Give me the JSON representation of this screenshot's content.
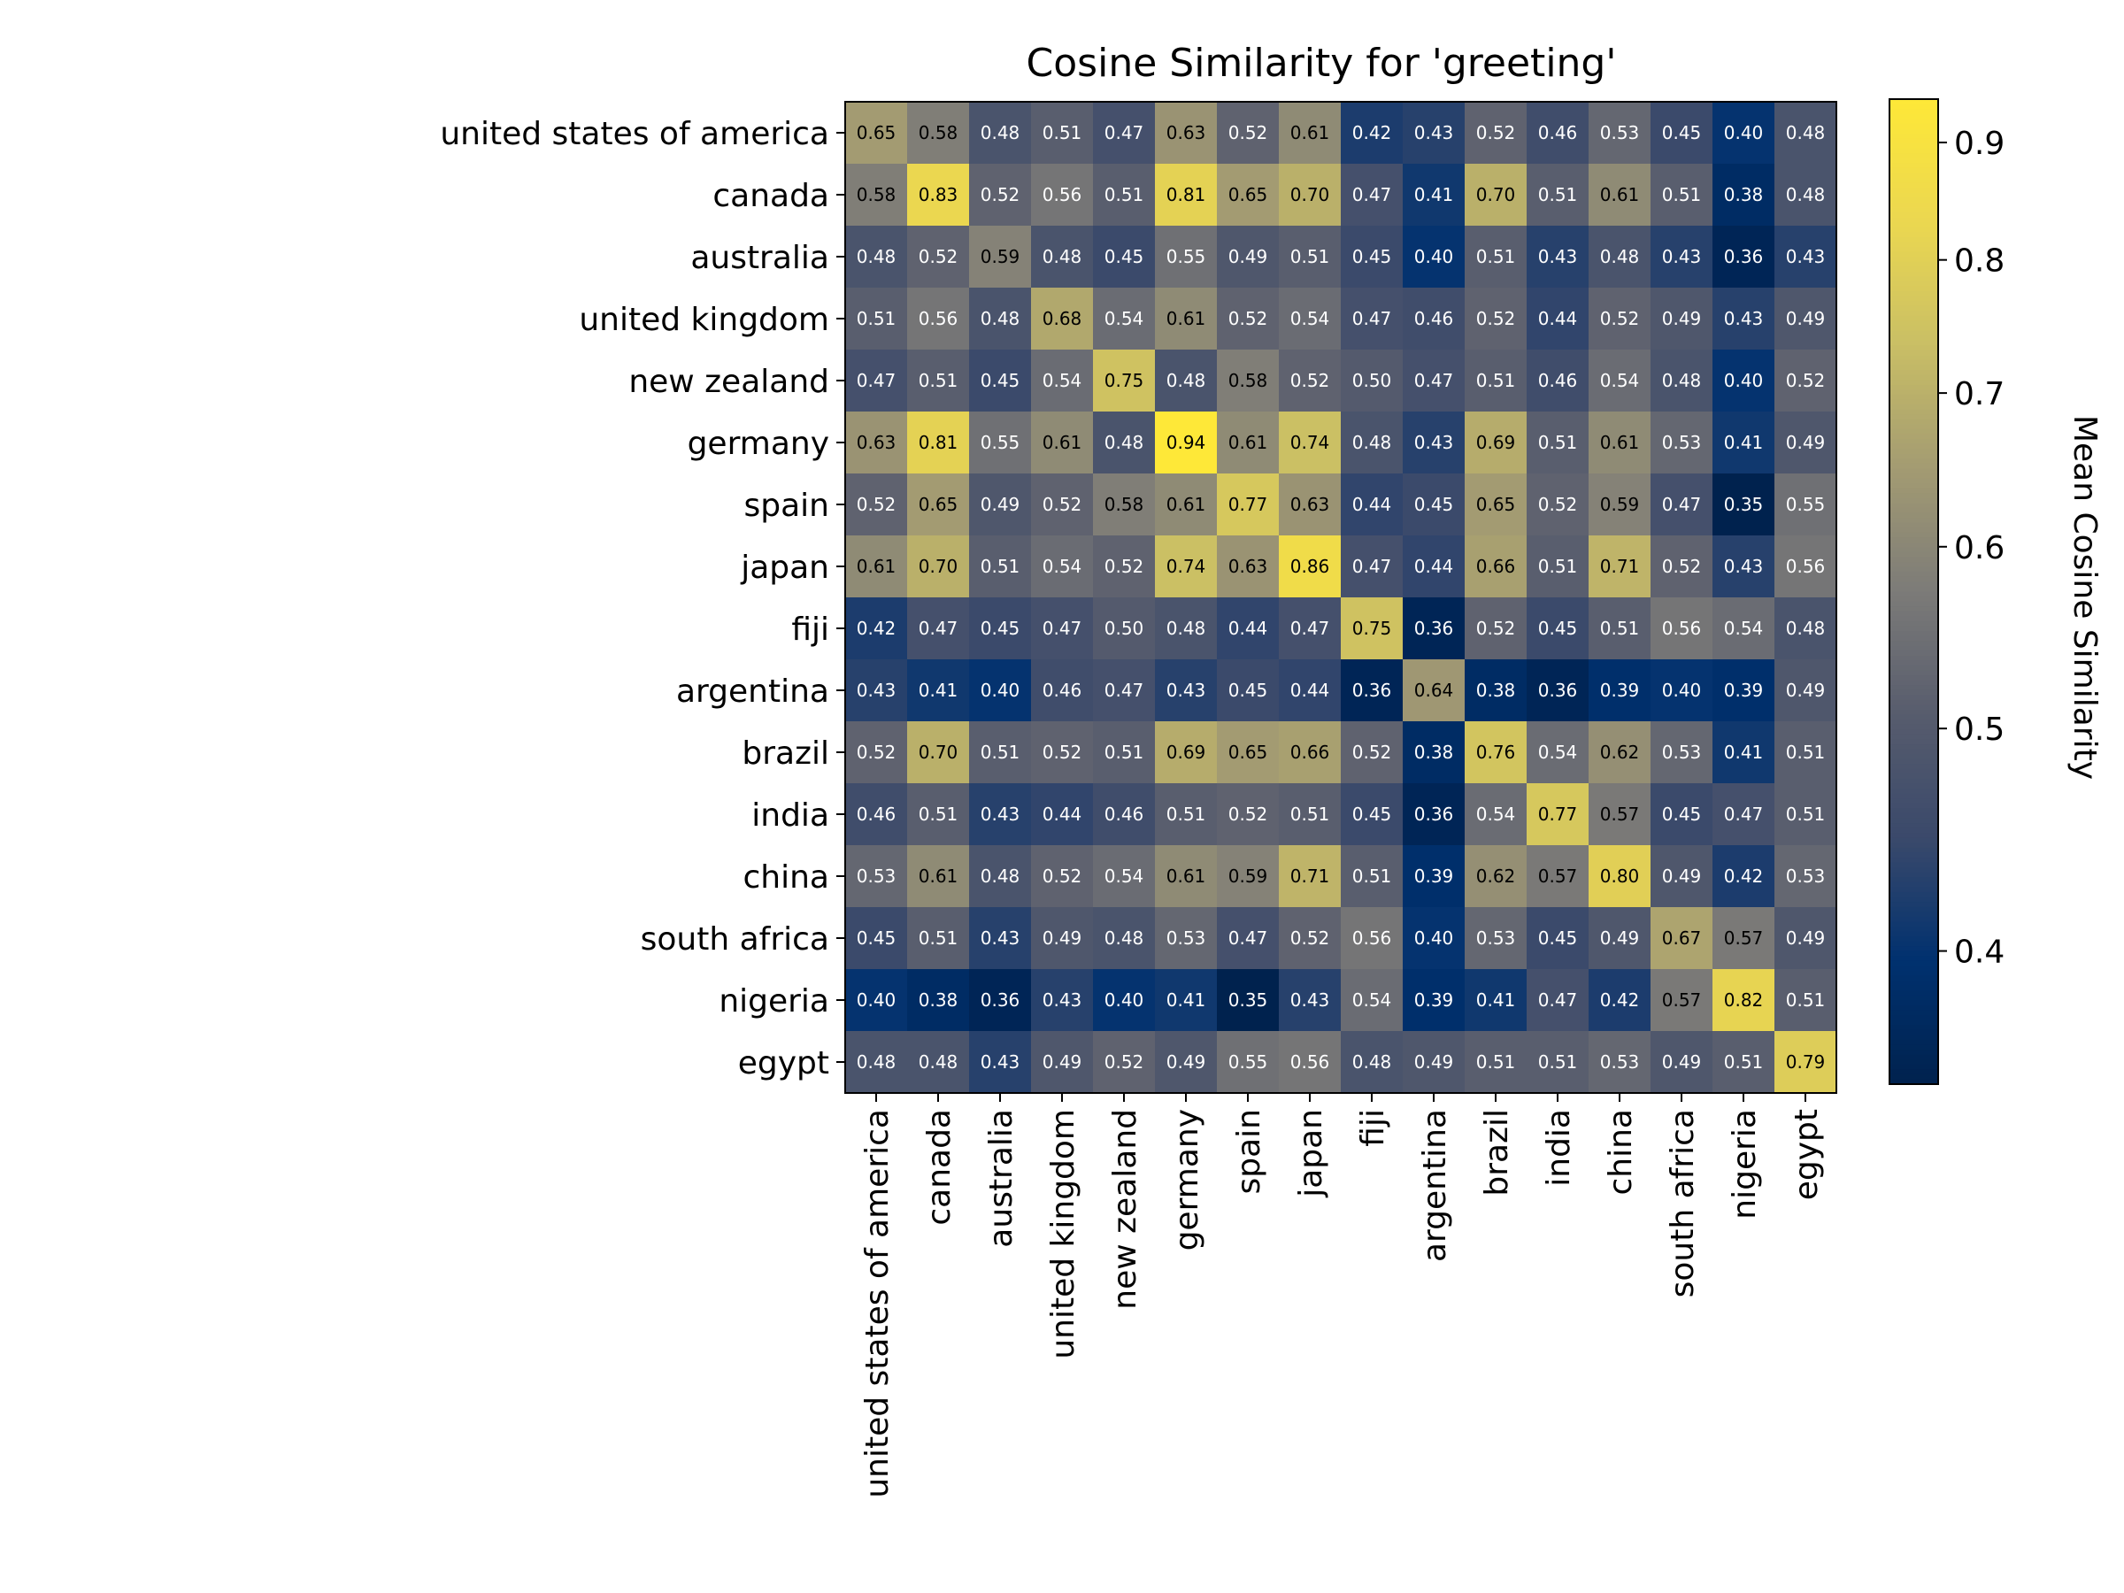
{
  "chart_data": {
    "type": "heatmap",
    "title": "Cosine Similarity for 'greeting'",
    "colorbar_label": "Mean Cosine Similarity",
    "colormap": "cividis",
    "color_scale": "log",
    "vmin": 0.35,
    "vmax": 0.94,
    "colorbar_ticks": [
      "0.4",
      "0.5",
      "0.6",
      "0.7",
      "0.8",
      "0.9"
    ],
    "rows": [
      "united states of america",
      "canada",
      "australia",
      "united kingdom",
      "new zealand",
      "germany",
      "spain",
      "japan",
      "fiji",
      "argentina",
      "brazil",
      "india",
      "china",
      "south africa",
      "nigeria",
      "egypt"
    ],
    "columns": [
      "united states of america",
      "canada",
      "australia",
      "united kingdom",
      "new zealand",
      "germany",
      "spain",
      "japan",
      "fiji",
      "argentina",
      "brazil",
      "india",
      "china",
      "south africa",
      "nigeria",
      "egypt"
    ],
    "values": [
      [
        "0.65",
        "0.58",
        "0.48",
        "0.51",
        "0.47",
        "0.63",
        "0.52",
        "0.61",
        "0.42",
        "0.43",
        "0.52",
        "0.46",
        "0.53",
        "0.45",
        "0.40",
        "0.48"
      ],
      [
        "0.58",
        "0.83",
        "0.52",
        "0.56",
        "0.51",
        "0.81",
        "0.65",
        "0.70",
        "0.47",
        "0.41",
        "0.70",
        "0.51",
        "0.61",
        "0.51",
        "0.38",
        "0.48"
      ],
      [
        "0.48",
        "0.52",
        "0.59",
        "0.48",
        "0.45",
        "0.55",
        "0.49",
        "0.51",
        "0.45",
        "0.40",
        "0.51",
        "0.43",
        "0.48",
        "0.43",
        "0.36",
        "0.43"
      ],
      [
        "0.51",
        "0.56",
        "0.48",
        "0.68",
        "0.54",
        "0.61",
        "0.52",
        "0.54",
        "0.47",
        "0.46",
        "0.52",
        "0.44",
        "0.52",
        "0.49",
        "0.43",
        "0.49"
      ],
      [
        "0.47",
        "0.51",
        "0.45",
        "0.54",
        "0.75",
        "0.48",
        "0.58",
        "0.52",
        "0.50",
        "0.47",
        "0.51",
        "0.46",
        "0.54",
        "0.48",
        "0.40",
        "0.52"
      ],
      [
        "0.63",
        "0.81",
        "0.55",
        "0.61",
        "0.48",
        "0.94",
        "0.61",
        "0.74",
        "0.48",
        "0.43",
        "0.69",
        "0.51",
        "0.61",
        "0.53",
        "0.41",
        "0.49"
      ],
      [
        "0.52",
        "0.65",
        "0.49",
        "0.52",
        "0.58",
        "0.61",
        "0.77",
        "0.63",
        "0.44",
        "0.45",
        "0.65",
        "0.52",
        "0.59",
        "0.47",
        "0.35",
        "0.55"
      ],
      [
        "0.61",
        "0.70",
        "0.51",
        "0.54",
        "0.52",
        "0.74",
        "0.63",
        "0.86",
        "0.47",
        "0.44",
        "0.66",
        "0.51",
        "0.71",
        "0.52",
        "0.43",
        "0.56"
      ],
      [
        "0.42",
        "0.47",
        "0.45",
        "0.47",
        "0.50",
        "0.48",
        "0.44",
        "0.47",
        "0.75",
        "0.36",
        "0.52",
        "0.45",
        "0.51",
        "0.56",
        "0.54",
        "0.48"
      ],
      [
        "0.43",
        "0.41",
        "0.40",
        "0.46",
        "0.47",
        "0.43",
        "0.45",
        "0.44",
        "0.36",
        "0.64",
        "0.38",
        "0.36",
        "0.39",
        "0.40",
        "0.39",
        "0.49"
      ],
      [
        "0.52",
        "0.70",
        "0.51",
        "0.52",
        "0.51",
        "0.69",
        "0.65",
        "0.66",
        "0.52",
        "0.38",
        "0.76",
        "0.54",
        "0.62",
        "0.53",
        "0.41",
        "0.51"
      ],
      [
        "0.46",
        "0.51",
        "0.43",
        "0.44",
        "0.46",
        "0.51",
        "0.52",
        "0.51",
        "0.45",
        "0.36",
        "0.54",
        "0.77",
        "0.57",
        "0.45",
        "0.47",
        "0.51"
      ],
      [
        "0.53",
        "0.61",
        "0.48",
        "0.52",
        "0.54",
        "0.61",
        "0.59",
        "0.71",
        "0.51",
        "0.39",
        "0.62",
        "0.57",
        "0.80",
        "0.49",
        "0.42",
        "0.53"
      ],
      [
        "0.45",
        "0.51",
        "0.43",
        "0.49",
        "0.48",
        "0.53",
        "0.47",
        "0.52",
        "0.56",
        "0.40",
        "0.53",
        "0.45",
        "0.49",
        "0.67",
        "0.57",
        "0.49"
      ],
      [
        "0.40",
        "0.38",
        "0.36",
        "0.43",
        "0.40",
        "0.41",
        "0.35",
        "0.43",
        "0.54",
        "0.39",
        "0.41",
        "0.47",
        "0.42",
        "0.57",
        "0.82",
        "0.51"
      ],
      [
        "0.48",
        "0.48",
        "0.43",
        "0.49",
        "0.52",
        "0.49",
        "0.55",
        "0.56",
        "0.48",
        "0.49",
        "0.51",
        "0.51",
        "0.53",
        "0.49",
        "0.51",
        "0.79"
      ]
    ]
  }
}
